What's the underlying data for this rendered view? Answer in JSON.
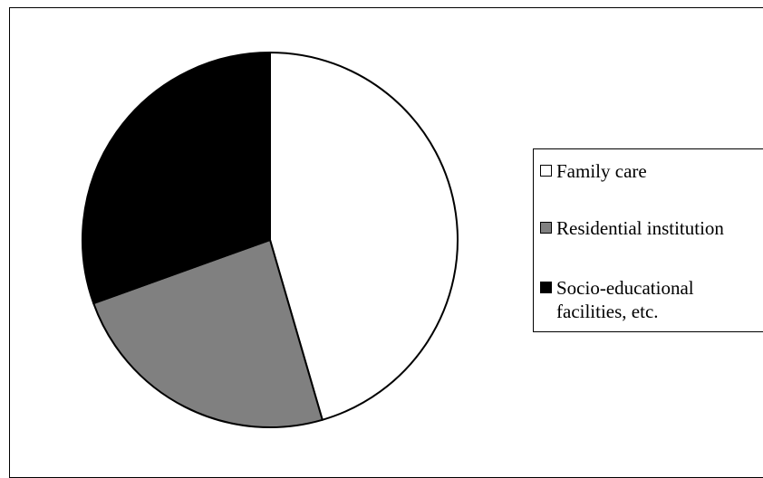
{
  "chart_data": {
    "type": "pie",
    "title": "",
    "slices": [
      {
        "label": "Family care",
        "value": 45.5,
        "color": "#ffffff"
      },
      {
        "label": "Residential institution",
        "value": 24.0,
        "color": "#808080"
      },
      {
        "label": "Socio-educational\nfacilities, etc.",
        "value": 30.5,
        "color": "#000000"
      }
    ],
    "start_angle_deg": 0,
    "direction": "clockwise",
    "legend_position": "right"
  }
}
